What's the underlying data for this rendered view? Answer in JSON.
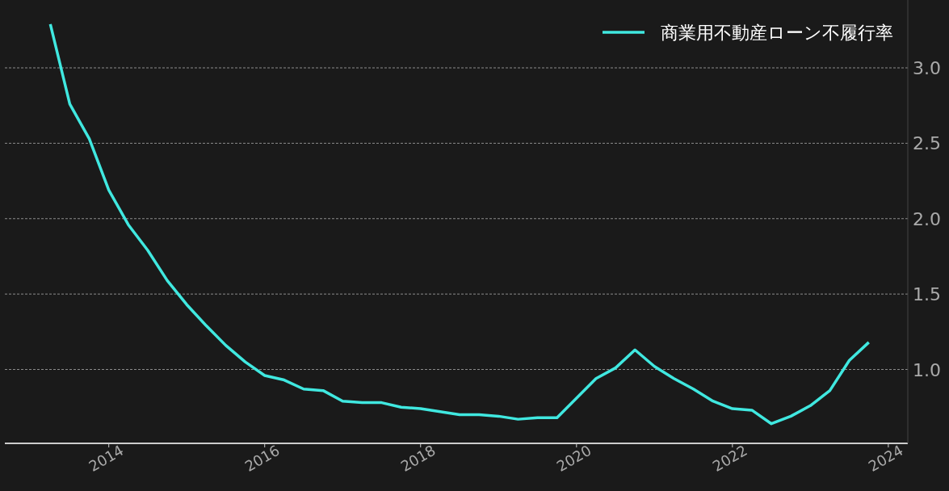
{
  "chart_data": {
    "type": "line",
    "x": [
      "2013-04",
      "2013-07",
      "2013-10",
      "2014-01",
      "2014-04",
      "2014-07",
      "2014-10",
      "2015-01",
      "2015-04",
      "2015-07",
      "2015-10",
      "2016-01",
      "2016-04",
      "2016-07",
      "2016-10",
      "2017-01",
      "2017-04",
      "2017-07",
      "2017-10",
      "2018-01",
      "2018-04",
      "2018-07",
      "2018-10",
      "2019-01",
      "2019-04",
      "2019-07",
      "2019-10",
      "2020-01",
      "2020-04",
      "2020-07",
      "2020-10",
      "2021-01",
      "2021-04",
      "2021-07",
      "2021-10",
      "2022-01",
      "2022-04",
      "2022-07",
      "2022-10",
      "2023-01",
      "2023-04",
      "2023-07",
      "2023-10"
    ],
    "series": [
      {
        "name": "商業用不動産ローン不履行率",
        "color": "#40e8e0",
        "values": [
          3.29,
          2.76,
          2.53,
          2.19,
          1.96,
          1.79,
          1.59,
          1.43,
          1.29,
          1.16,
          1.05,
          0.96,
          0.93,
          0.87,
          0.86,
          0.79,
          0.78,
          0.78,
          0.75,
          0.74,
          0.72,
          0.7,
          0.7,
          0.69,
          0.67,
          0.68,
          0.68,
          0.81,
          0.94,
          1.01,
          1.13,
          1.02,
          0.94,
          0.87,
          0.79,
          0.74,
          0.73,
          0.64,
          0.69,
          0.76,
          0.86,
          1.06,
          1.18
        ]
      }
    ],
    "xlim": [
      "2012-09",
      "2024-04"
    ],
    "xticks": [
      "2014",
      "2016",
      "2018",
      "2020",
      "2022",
      "2024"
    ],
    "ylim": [
      0.51,
      3.45
    ],
    "yticks": [
      {
        "value": 1,
        "label": "1.0"
      },
      {
        "value": 1.5,
        "label": "1.5"
      },
      {
        "value": 2,
        "label": "2.0"
      },
      {
        "value": 2.5,
        "label": "2.5"
      },
      {
        "value": 3,
        "label": "3.0"
      }
    ],
    "grid": "y",
    "legend": "top right",
    "marker": "none",
    "line_style": "solid"
  }
}
